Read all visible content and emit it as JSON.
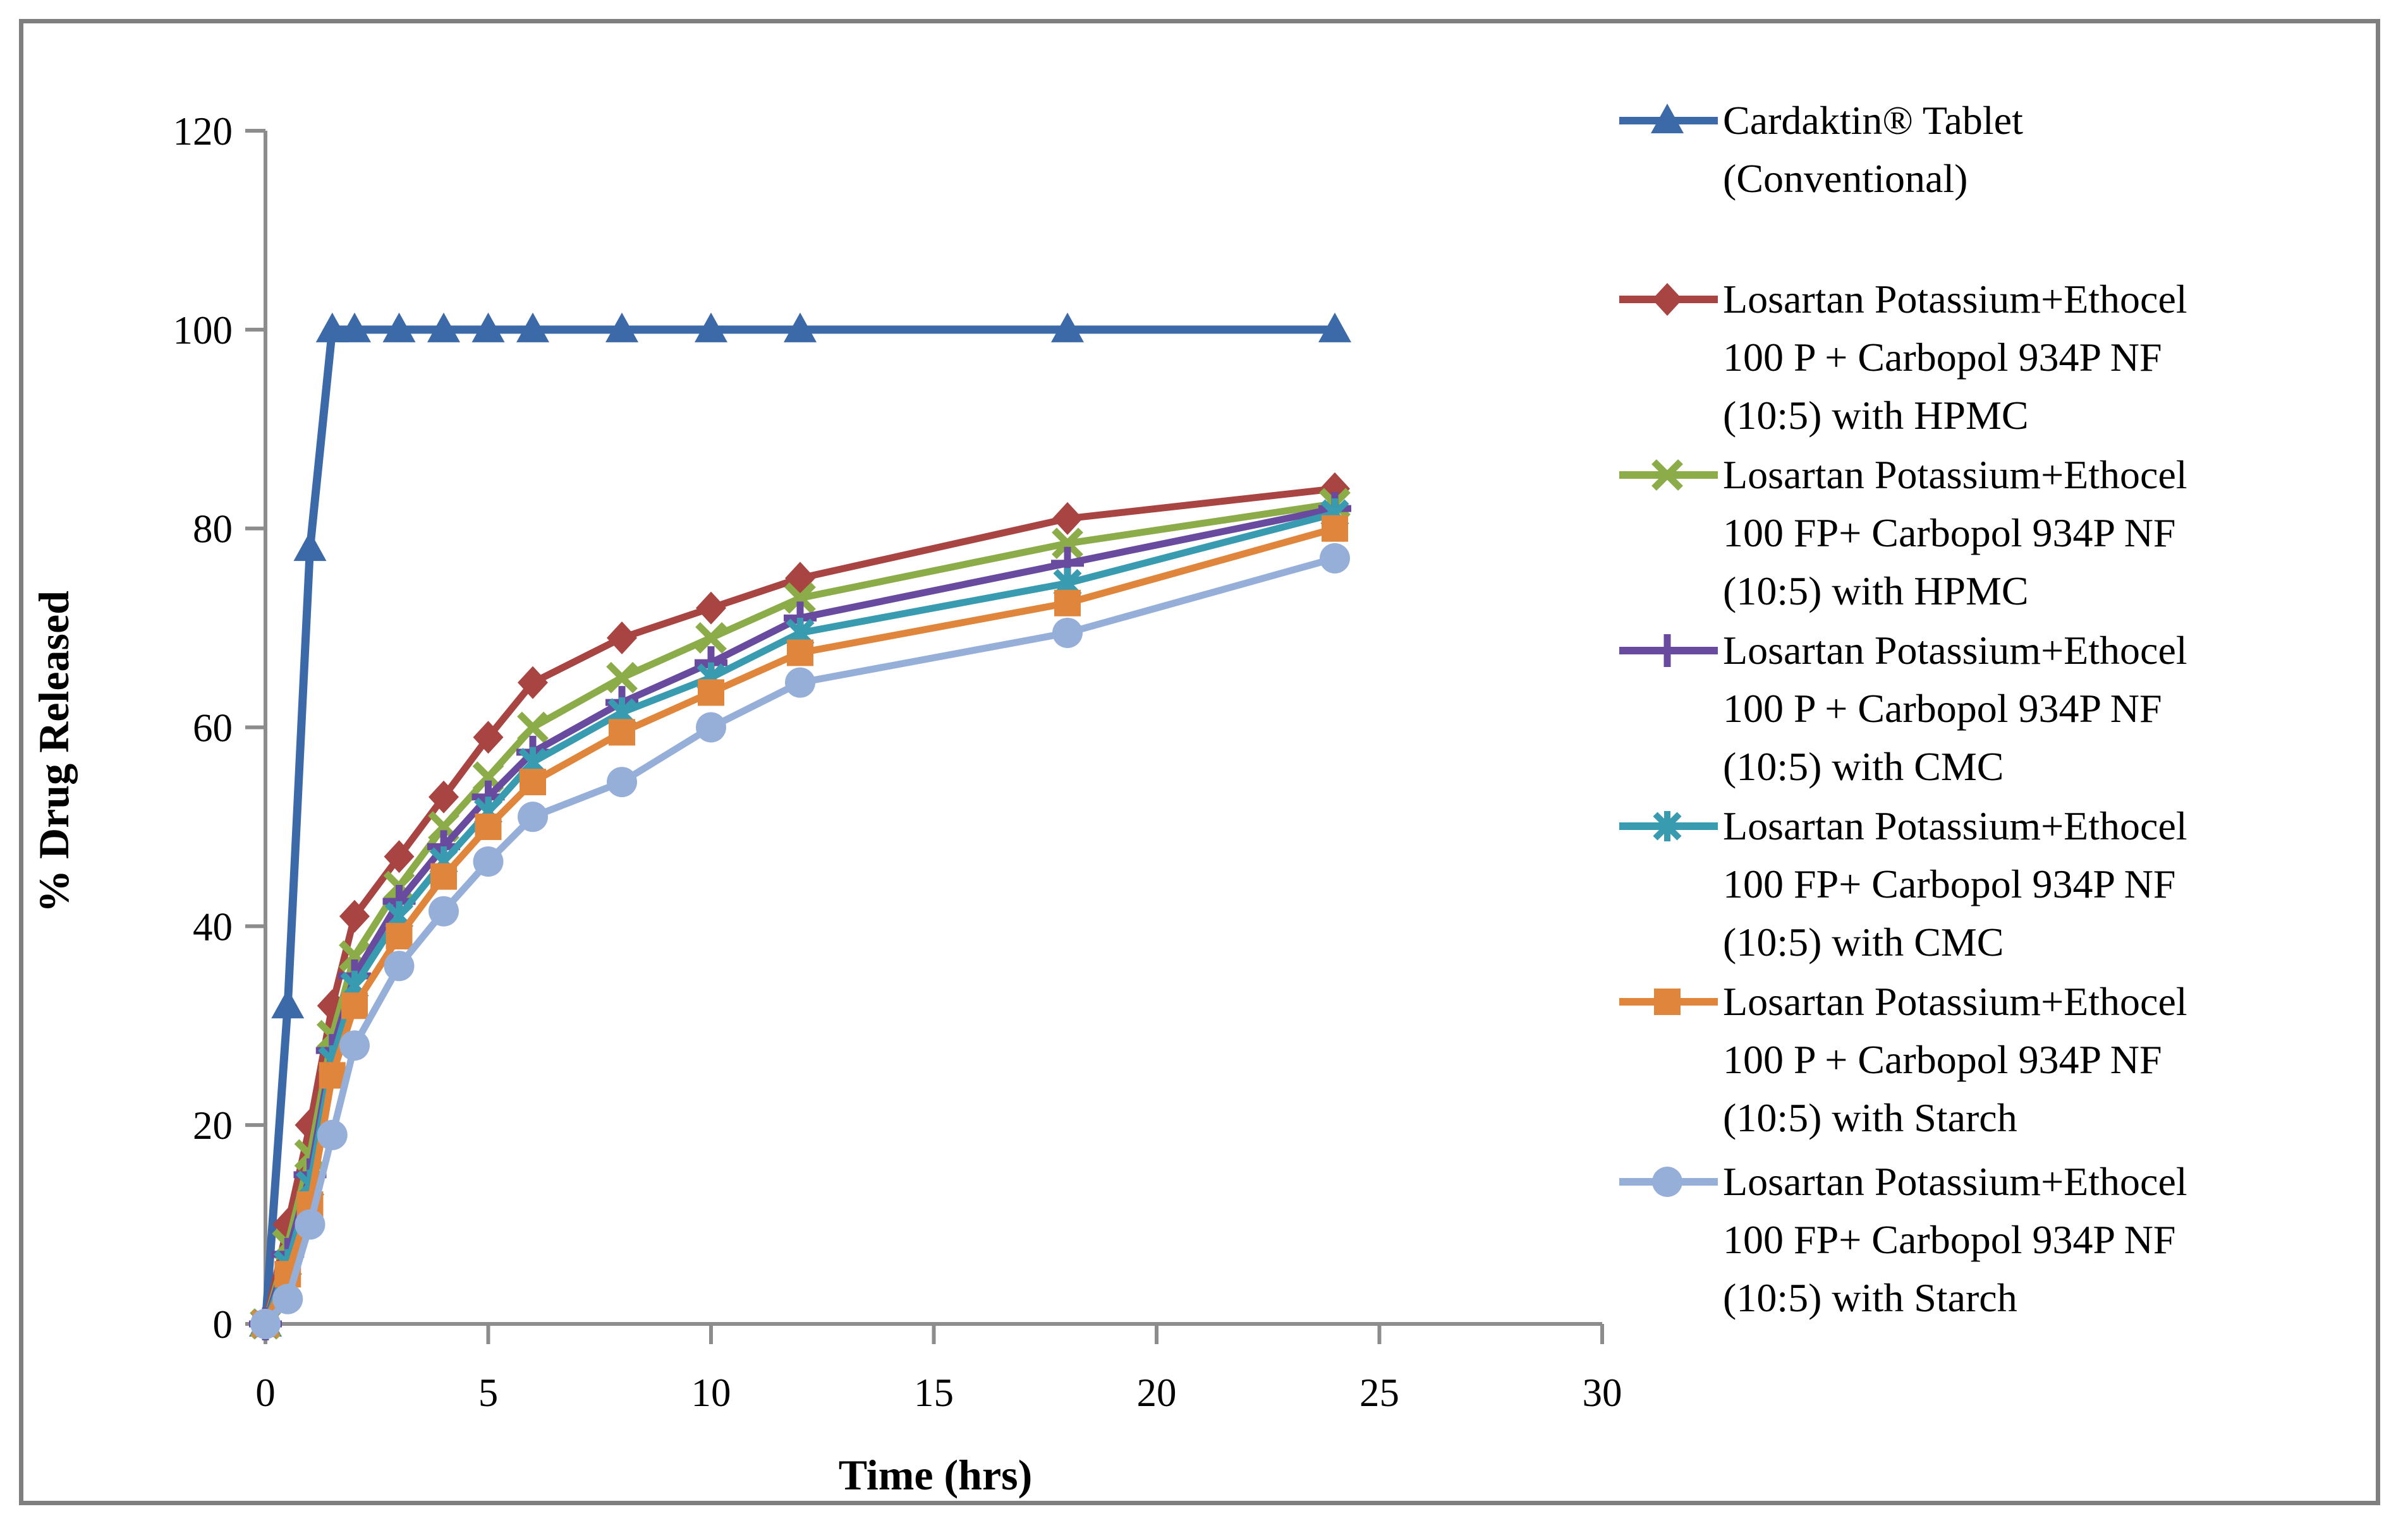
{
  "figure": {
    "background": "#ffffff",
    "border_color": "#7f7f7f",
    "axis_color": "#8c8c8c"
  },
  "chart_data": {
    "type": "line",
    "title": "",
    "xlabel": "Time (hrs)",
    "ylabel": "% Drug Released",
    "xlim": [
      0,
      30
    ],
    "ylim": [
      0,
      120
    ],
    "x_ticks": [
      0,
      5,
      10,
      15,
      20,
      25,
      30
    ],
    "y_ticks": [
      0,
      20,
      40,
      60,
      80,
      100,
      120
    ],
    "grid": false,
    "legend_position": "right",
    "x": [
      0,
      0.5,
      1,
      1.5,
      2,
      3,
      4,
      5,
      6,
      8,
      10,
      12,
      18,
      24
    ],
    "series": [
      {
        "name": "Cardaktin® Tablet (Conventional)",
        "label_lines": [
          "Cardaktin® Tablet",
          "(Conventional)"
        ],
        "color": "#3C69A8",
        "marker": "triangle",
        "line_width": 13,
        "values": [
          0,
          32,
          78,
          100,
          100,
          100,
          100,
          100,
          100,
          100,
          100,
          100,
          100,
          100
        ]
      },
      {
        "name": "Losartan Potassium+Ethocel 100 P + Carbopol 934P NF (10:5) with HPMC",
        "label_lines": [
          "Losartan Potassium+Ethocel",
          "100 P + Carbopol 934P NF",
          "(10:5) with HPMC"
        ],
        "color": "#A84442",
        "marker": "diamond",
        "line_width": 11,
        "values": [
          0,
          10,
          20,
          32,
          41,
          47,
          53,
          59,
          64.5,
          69,
          72,
          75,
          81,
          84
        ]
      },
      {
        "name": "Losartan Potassium+Ethocel 100 FP+ Carbopol 934P NF (10:5) with HPMC",
        "label_lines": [
          "Losartan Potassium+Ethocel",
          "100 FP+ Carbopol 934P NF",
          "(10:5) with HPMC"
        ],
        "color": "#8CAC49",
        "marker": "x",
        "line_width": 11,
        "values": [
          0,
          8,
          17,
          29,
          37,
          44,
          50,
          55,
          60,
          65,
          69,
          73,
          78.5,
          82.5
        ]
      },
      {
        "name": "Losartan Potassium+Ethocel 100 P + Carbopol 934P NF (10:5) with CMC",
        "label_lines": [
          "Losartan Potassium+Ethocel",
          "100 P + Carbopol 934P NF",
          "(10:5) with CMC"
        ],
        "color": "#684A9E",
        "marker": "plus",
        "line_width": 11,
        "values": [
          0,
          7,
          15,
          27.5,
          35,
          42.5,
          48,
          53,
          57.5,
          62.5,
          66.5,
          71,
          76.5,
          82
        ]
      },
      {
        "name": "Losartan Potassium+Ethocel 100 FP+ Carbopol 934P NF (10:5) with CMC",
        "label_lines": [
          "Losartan Potassium+Ethocel",
          "100 FP+ Carbopol 934P NF",
          "(10:5) with CMC"
        ],
        "color": "#389BB0",
        "marker": "asterisk",
        "line_width": 11,
        "values": [
          0,
          6,
          14,
          26.5,
          34,
          41,
          46.5,
          51.5,
          56.5,
          61.5,
          65,
          69.5,
          74.5,
          81.5
        ]
      },
      {
        "name": "Losartan Potassium+Ethocel 100 P + Carbopol 934P NF (10:5) with Starch",
        "label_lines": [
          "Losartan Potassium+Ethocel",
          "100 P + Carbopol 934P NF",
          "(10:5) with Starch"
        ],
        "color": "#E0853C",
        "marker": "square",
        "line_width": 11,
        "values": [
          0,
          5,
          12,
          25,
          32,
          39,
          45,
          50,
          54.5,
          59.5,
          63.5,
          67.5,
          72.5,
          80
        ]
      },
      {
        "name": "Losartan Potassium+Ethocel 100 FP+ Carbopol 934P NF (10:5) with Starch",
        "label_lines": [
          "Losartan Potassium+Ethocel",
          "100 FP+ Carbopol 934P NF",
          "(10:5) with Starch"
        ],
        "color": "#96AFD9",
        "marker": "circle",
        "line_width": 11,
        "values": [
          0,
          2.5,
          10,
          19,
          28,
          36,
          41.5,
          46.5,
          51,
          54.5,
          60,
          64.5,
          69.5,
          77
        ]
      }
    ]
  }
}
